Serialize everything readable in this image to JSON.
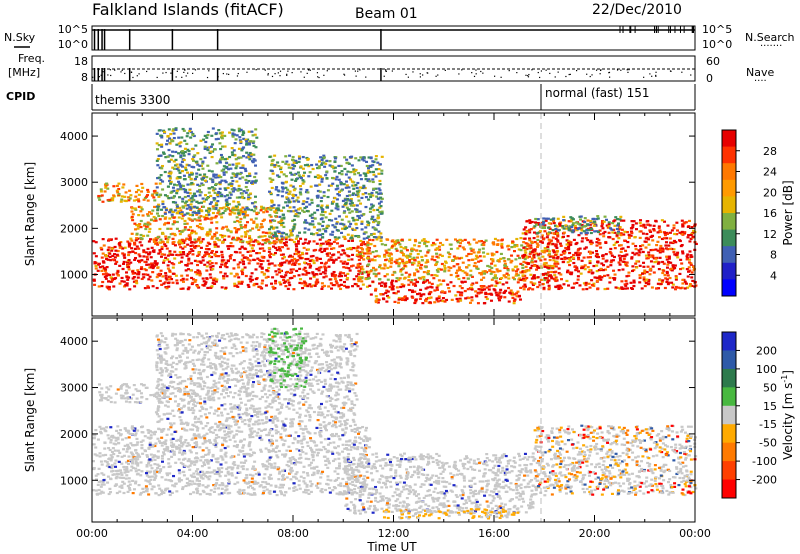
{
  "header": {
    "station": "Falkland Islands (fitACF)",
    "beam": "Beam 01",
    "date": "22/Dec/2010"
  },
  "colors": {
    "frame": "#000000",
    "gray_scatter": "#c8c8c8",
    "dash": "#bdbdbd"
  },
  "top_panels": {
    "nsky": {
      "label": "N.Sky",
      "left_ticks": [
        "10^5",
        "10^0"
      ],
      "right_ticks": [
        "10^5",
        "10^0"
      ],
      "right_label": "N.Search",
      "right_dots": "·······"
    },
    "freq": {
      "label_line1": "Freq.",
      "label_line2": "[MHz]",
      "left_ticks": [
        "18",
        "8"
      ],
      "right_ticks": [
        "60",
        "0"
      ],
      "right_label": "Nave",
      "right_dots": "····"
    },
    "cpid": {
      "label": "CPID",
      "entries": [
        {
          "text": "themis 3300",
          "start_hour": 0
        },
        {
          "text": "normal (fast) 151",
          "start_hour": 18
        }
      ]
    }
  },
  "power_colorbar": {
    "label": "Power [dB]",
    "ticks": [
      "28",
      "24",
      "20",
      "16",
      "12",
      "8",
      "4"
    ],
    "colors": [
      "#e60000",
      "#ff3200",
      "#ff7800",
      "#ff9a00",
      "#e6b400",
      "#80b040",
      "#3c8c5a",
      "#4060b4",
      "#2020c8",
      "#0000ff"
    ]
  },
  "velocity_colorbar": {
    "label": "Velocity [m s",
    "label_sup": "-1",
    "label_end": "]",
    "ticks": [
      "200",
      "100",
      "50",
      "15",
      "-15",
      "-50",
      "-100",
      "-200"
    ],
    "colors": [
      "#1e28c8",
      "#2e5aa8",
      "#2d7a4c",
      "#48b840",
      "#c8c8c8",
      "#ffaa00",
      "#ff7a00",
      "#ff4000",
      "#ff0000"
    ]
  },
  "chart_data": [
    {
      "type": "heatmap",
      "title": "Power",
      "ylabel": "Slant Range [km]",
      "xlabel": "",
      "ylim": [
        100,
        4500
      ],
      "yticks": [
        1000,
        2000,
        3000,
        4000
      ],
      "x_hours": [
        0,
        24
      ],
      "scatter_regions": [
        {
          "t0": 0.0,
          "t1": 11.0,
          "r0": 700,
          "r1": 1800,
          "level": "high"
        },
        {
          "t0": 1.5,
          "t1": 7.5,
          "r0": 1700,
          "r1": 2500,
          "level": "mid"
        },
        {
          "t0": 0.2,
          "t1": 2.5,
          "r0": 2600,
          "r1": 3000,
          "level": "mid"
        },
        {
          "t0": 2.5,
          "t1": 6.5,
          "r0": 2300,
          "r1": 4200,
          "level": "low"
        },
        {
          "t0": 7.0,
          "t1": 11.5,
          "r0": 1800,
          "r1": 3600,
          "level": "low"
        },
        {
          "t0": 11.0,
          "t1": 17.0,
          "r0": 400,
          "r1": 900,
          "level": "high"
        },
        {
          "t0": 10.5,
          "t1": 18.5,
          "r0": 900,
          "r1": 1800,
          "level": "mid"
        },
        {
          "t0": 17.0,
          "t1": 24.0,
          "r0": 700,
          "r1": 2200,
          "level": "high"
        },
        {
          "t0": 17.5,
          "t1": 21.0,
          "r0": 1900,
          "r1": 2300,
          "level": "low"
        }
      ]
    },
    {
      "type": "heatmap",
      "title": "Velocity",
      "ylabel": "Slant Range [km]",
      "xlabel": "Time UT",
      "ylim": [
        100,
        4500
      ],
      "yticks": [
        1000,
        2000,
        3000,
        4000
      ],
      "x_hours": [
        0,
        24
      ],
      "xticks": [
        "00:00",
        "04:00",
        "08:00",
        "12:00",
        "16:00",
        "20:00",
        "00:00"
      ],
      "scatter_regions": [
        {
          "t0": 0.0,
          "t1": 11.0,
          "r0": 700,
          "r1": 2200,
          "level": "gray"
        },
        {
          "t0": 0.2,
          "t1": 3.0,
          "r0": 2700,
          "r1": 3100,
          "level": "gray"
        },
        {
          "t0": 2.5,
          "t1": 10.5,
          "r0": 2200,
          "r1": 4200,
          "level": "gray"
        },
        {
          "t0": 7.0,
          "t1": 8.5,
          "r0": 3000,
          "r1": 4300,
          "level": "green"
        },
        {
          "t0": 10.0,
          "t1": 17.5,
          "r0": 300,
          "r1": 1600,
          "level": "gray"
        },
        {
          "t0": 11.5,
          "t1": 17.0,
          "r0": 200,
          "r1": 400,
          "level": "orange"
        },
        {
          "t0": 17.5,
          "t1": 24.0,
          "r0": 700,
          "r1": 2200,
          "level": "mixed"
        }
      ]
    }
  ]
}
